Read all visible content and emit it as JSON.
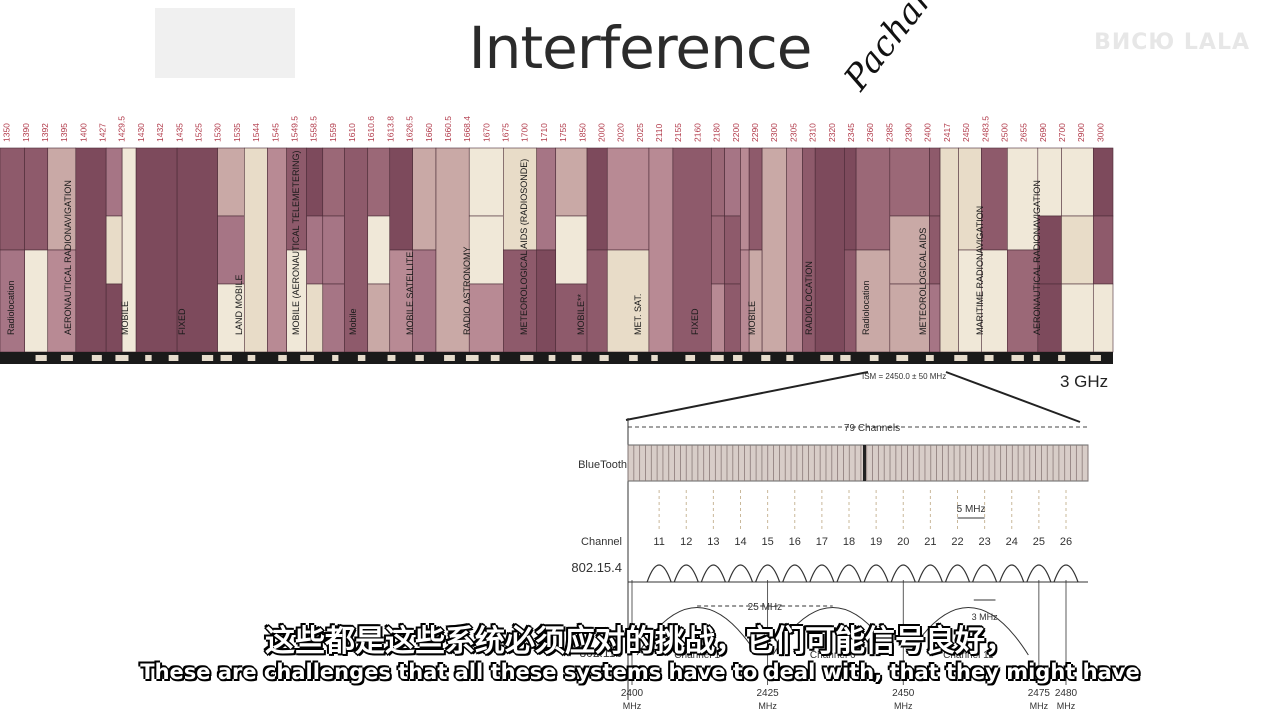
{
  "slide": {
    "title": "Interference",
    "watermark": "ВИСЮ LALA"
  },
  "spectrum": {
    "scale_label": "3 GHz",
    "ism_label": "ISM = 2450.0 ± 50 MHz",
    "handwritten_note": "Pachard",
    "frequency_ticks": [
      "1350",
      "1390",
      "1392",
      "1395",
      "1400",
      "1427",
      "1429.5",
      "1430",
      "1432",
      "1435",
      "1525",
      "1530",
      "1535",
      "1544",
      "1545",
      "1549.5",
      "1558.5",
      "1559",
      "1610",
      "1610.6",
      "1613.8",
      "1626.5",
      "1660",
      "1660.5",
      "1668.4",
      "1670",
      "1675",
      "1700",
      "1710",
      "1755",
      "1850",
      "2000",
      "2020",
      "2025",
      "2110",
      "2155",
      "2160",
      "2180",
      "2200",
      "2290",
      "2300",
      "2305",
      "2310",
      "2320",
      "2345",
      "2360",
      "2385",
      "2390",
      "2400",
      "2417",
      "2450",
      "2483.5",
      "2500",
      "2655",
      "2690",
      "2700",
      "2900",
      "3000"
    ],
    "band_labels": [
      "Radiolocation",
      "AERONAUTICAL RADIONAVIGATION",
      "MOBILE",
      "FIXED",
      "LAND MOBILE",
      "MOBILE (AERONAUTICAL TELEMETERING)",
      "Mobile",
      "MOBILE SATELLITE",
      "RADIO ASTRONOMY",
      "METEOROLOGICAL AIDS (RADIOSONDE)",
      "MOBILE**",
      "MET. SAT.",
      "FIXED",
      "MOBILE",
      "RADIOLOCATION",
      "Radiolocation",
      "METEOROLOGICAL AIDS",
      "MARITIME RADIONAVIGATION",
      "AERONAUTICAL RADIONAVIGATION"
    ]
  },
  "channels": {
    "span_label": "79 Channels",
    "bluetooth_label": "BlueTooth",
    "channel_row_label": "Channel",
    "standard_label": "802.15.4",
    "standard_label_b": "802.11b",
    "numbers": [
      "11",
      "12",
      "13",
      "14",
      "15",
      "16",
      "17",
      "18",
      "19",
      "20",
      "21",
      "22",
      "23",
      "24",
      "25",
      "26"
    ],
    "spacing_5": "5 MHz",
    "spacing_25": "25 MHz",
    "spacing_3": "3 MHz",
    "wifi_channels": [
      "Channel 1",
      "Channel 6",
      "Channel 11"
    ],
    "freq_axis": [
      {
        "label": "2400",
        "unit": "MHz",
        "mhz": 2400
      },
      {
        "label": "2425",
        "unit": "MHz",
        "mhz": 2425
      },
      {
        "label": "2450",
        "unit": "MHz",
        "mhz": 2450
      },
      {
        "label": "2475",
        "unit": "MHz",
        "mhz": 2475
      },
      {
        "label": "2480",
        "unit": "MHz",
        "mhz": 2480
      }
    ]
  },
  "subtitles": {
    "chinese": "这些都是这些系统必须应对的挑战，它们可能信号良好，",
    "english": "These are challenges that all these systems have to deal with, that they might have"
  }
}
